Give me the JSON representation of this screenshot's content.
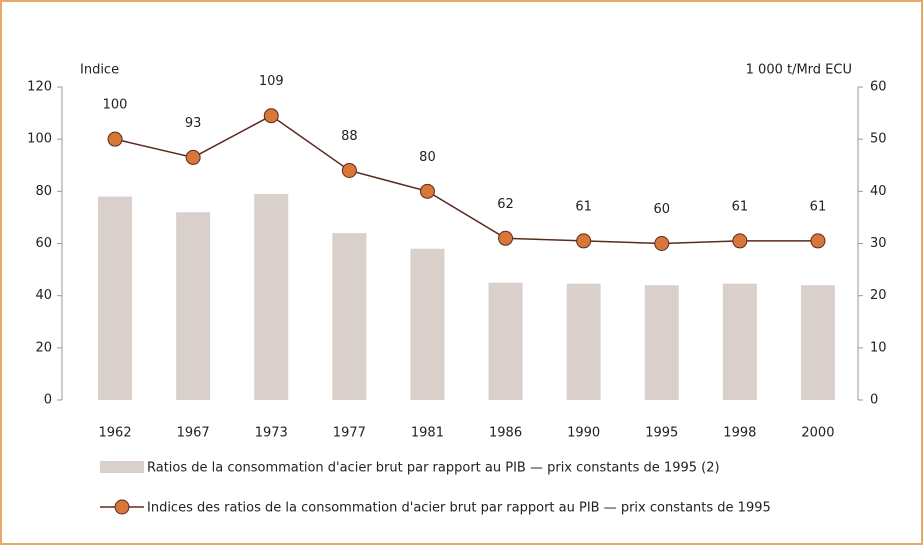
{
  "chart_data": {
    "type": "bar",
    "ylabel": "Indice",
    "y2label": "1 000 t/Mrd ECU",
    "categories": [
      "1962",
      "1967",
      "1973",
      "1977",
      "1981",
      "1986",
      "1990",
      "1995",
      "1998",
      "2000"
    ],
    "series": [
      {
        "name": "Ratios de la consommation d'acier brut par rapport au PIB — prix constants de 1995 (2)",
        "type": "bar",
        "axis": "y2",
        "color": "#d9d0cb",
        "values": [
          39,
          36,
          39.5,
          32,
          29,
          22.5,
          22.3,
          22,
          22.3,
          22
        ]
      },
      {
        "name": "Indices des ratios de la consommation d'acier brut par rapport au PIB — prix constants de 1995",
        "type": "line",
        "axis": "y",
        "color": "#5a2a1e",
        "marker_color": "#d9763a",
        "values": [
          100,
          93,
          109,
          88,
          80,
          62,
          61,
          60,
          61,
          61
        ]
      }
    ],
    "ylim": [
      0,
      120
    ],
    "yticks": [
      0,
      20,
      40,
      60,
      80,
      100,
      120
    ],
    "y2lim": [
      0,
      60
    ],
    "y2ticks": [
      0,
      10,
      20,
      30,
      40,
      50,
      60
    ],
    "grid": false
  }
}
